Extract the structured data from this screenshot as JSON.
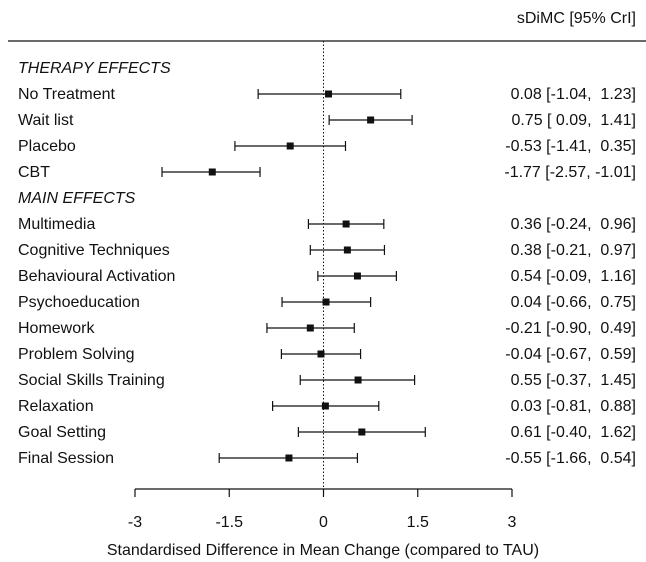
{
  "chart_data": {
    "type": "forest",
    "estimate_header": "sDiMC [95% CrI]",
    "xlabel": "Standardised Difference in Mean Change (compared to TAU)",
    "xlim": [
      -3,
      3
    ],
    "xticks": [
      -3,
      -1.5,
      0,
      1.5,
      3
    ],
    "xtick_labels": [
      "-3",
      "-1.5",
      "0",
      "1.5",
      "3"
    ],
    "reference_line": 0,
    "sections": [
      {
        "title": "THERAPY EFFECTS",
        "rows": [
          {
            "label": "No Treatment",
            "est": 0.08,
            "lo": -1.04,
            "hi": 1.23,
            "text": "0.08 [-1.04,  1.23]"
          },
          {
            "label": "Wait list",
            "est": 0.75,
            "lo": 0.09,
            "hi": 1.41,
            "text": "0.75 [ 0.09,  1.41]"
          },
          {
            "label": "Placebo",
            "est": -0.53,
            "lo": -1.41,
            "hi": 0.35,
            "text": "-0.53 [-1.41,  0.35]"
          },
          {
            "label": "CBT",
            "est": -1.77,
            "lo": -2.57,
            "hi": -1.01,
            "text": "-1.77 [-2.57, -1.01]"
          }
        ]
      },
      {
        "title": "MAIN EFFECTS",
        "rows": [
          {
            "label": "Multimedia",
            "est": 0.36,
            "lo": -0.24,
            "hi": 0.96,
            "text": "0.36 [-0.24,  0.96]"
          },
          {
            "label": "Cognitive Techniques",
            "est": 0.38,
            "lo": -0.21,
            "hi": 0.97,
            "text": "0.38 [-0.21,  0.97]"
          },
          {
            "label": "Behavioural Activation",
            "est": 0.54,
            "lo": -0.09,
            "hi": 1.16,
            "text": "0.54 [-0.09,  1.16]"
          },
          {
            "label": "Psychoeducation",
            "est": 0.04,
            "lo": -0.66,
            "hi": 0.75,
            "text": "0.04 [-0.66,  0.75]"
          },
          {
            "label": "Homework",
            "est": -0.21,
            "lo": -0.9,
            "hi": 0.49,
            "text": "-0.21 [-0.90,  0.49]"
          },
          {
            "label": "Problem Solving",
            "est": -0.04,
            "lo": -0.67,
            "hi": 0.59,
            "text": "-0.04 [-0.67,  0.59]"
          },
          {
            "label": "Social Skills Training",
            "est": 0.55,
            "lo": -0.37,
            "hi": 1.45,
            "text": "0.55 [-0.37,  1.45]"
          },
          {
            "label": "Relaxation",
            "est": 0.03,
            "lo": -0.81,
            "hi": 0.88,
            "text": "0.03 [-0.81,  0.88]"
          },
          {
            "label": "Goal Setting",
            "est": 0.61,
            "lo": -0.4,
            "hi": 1.62,
            "text": "0.61 [-0.40,  1.62]"
          },
          {
            "label": "Final Session",
            "est": -0.55,
            "lo": -1.66,
            "hi": 0.54,
            "text": "-0.55 [-1.66,  0.54]"
          }
        ]
      }
    ]
  }
}
